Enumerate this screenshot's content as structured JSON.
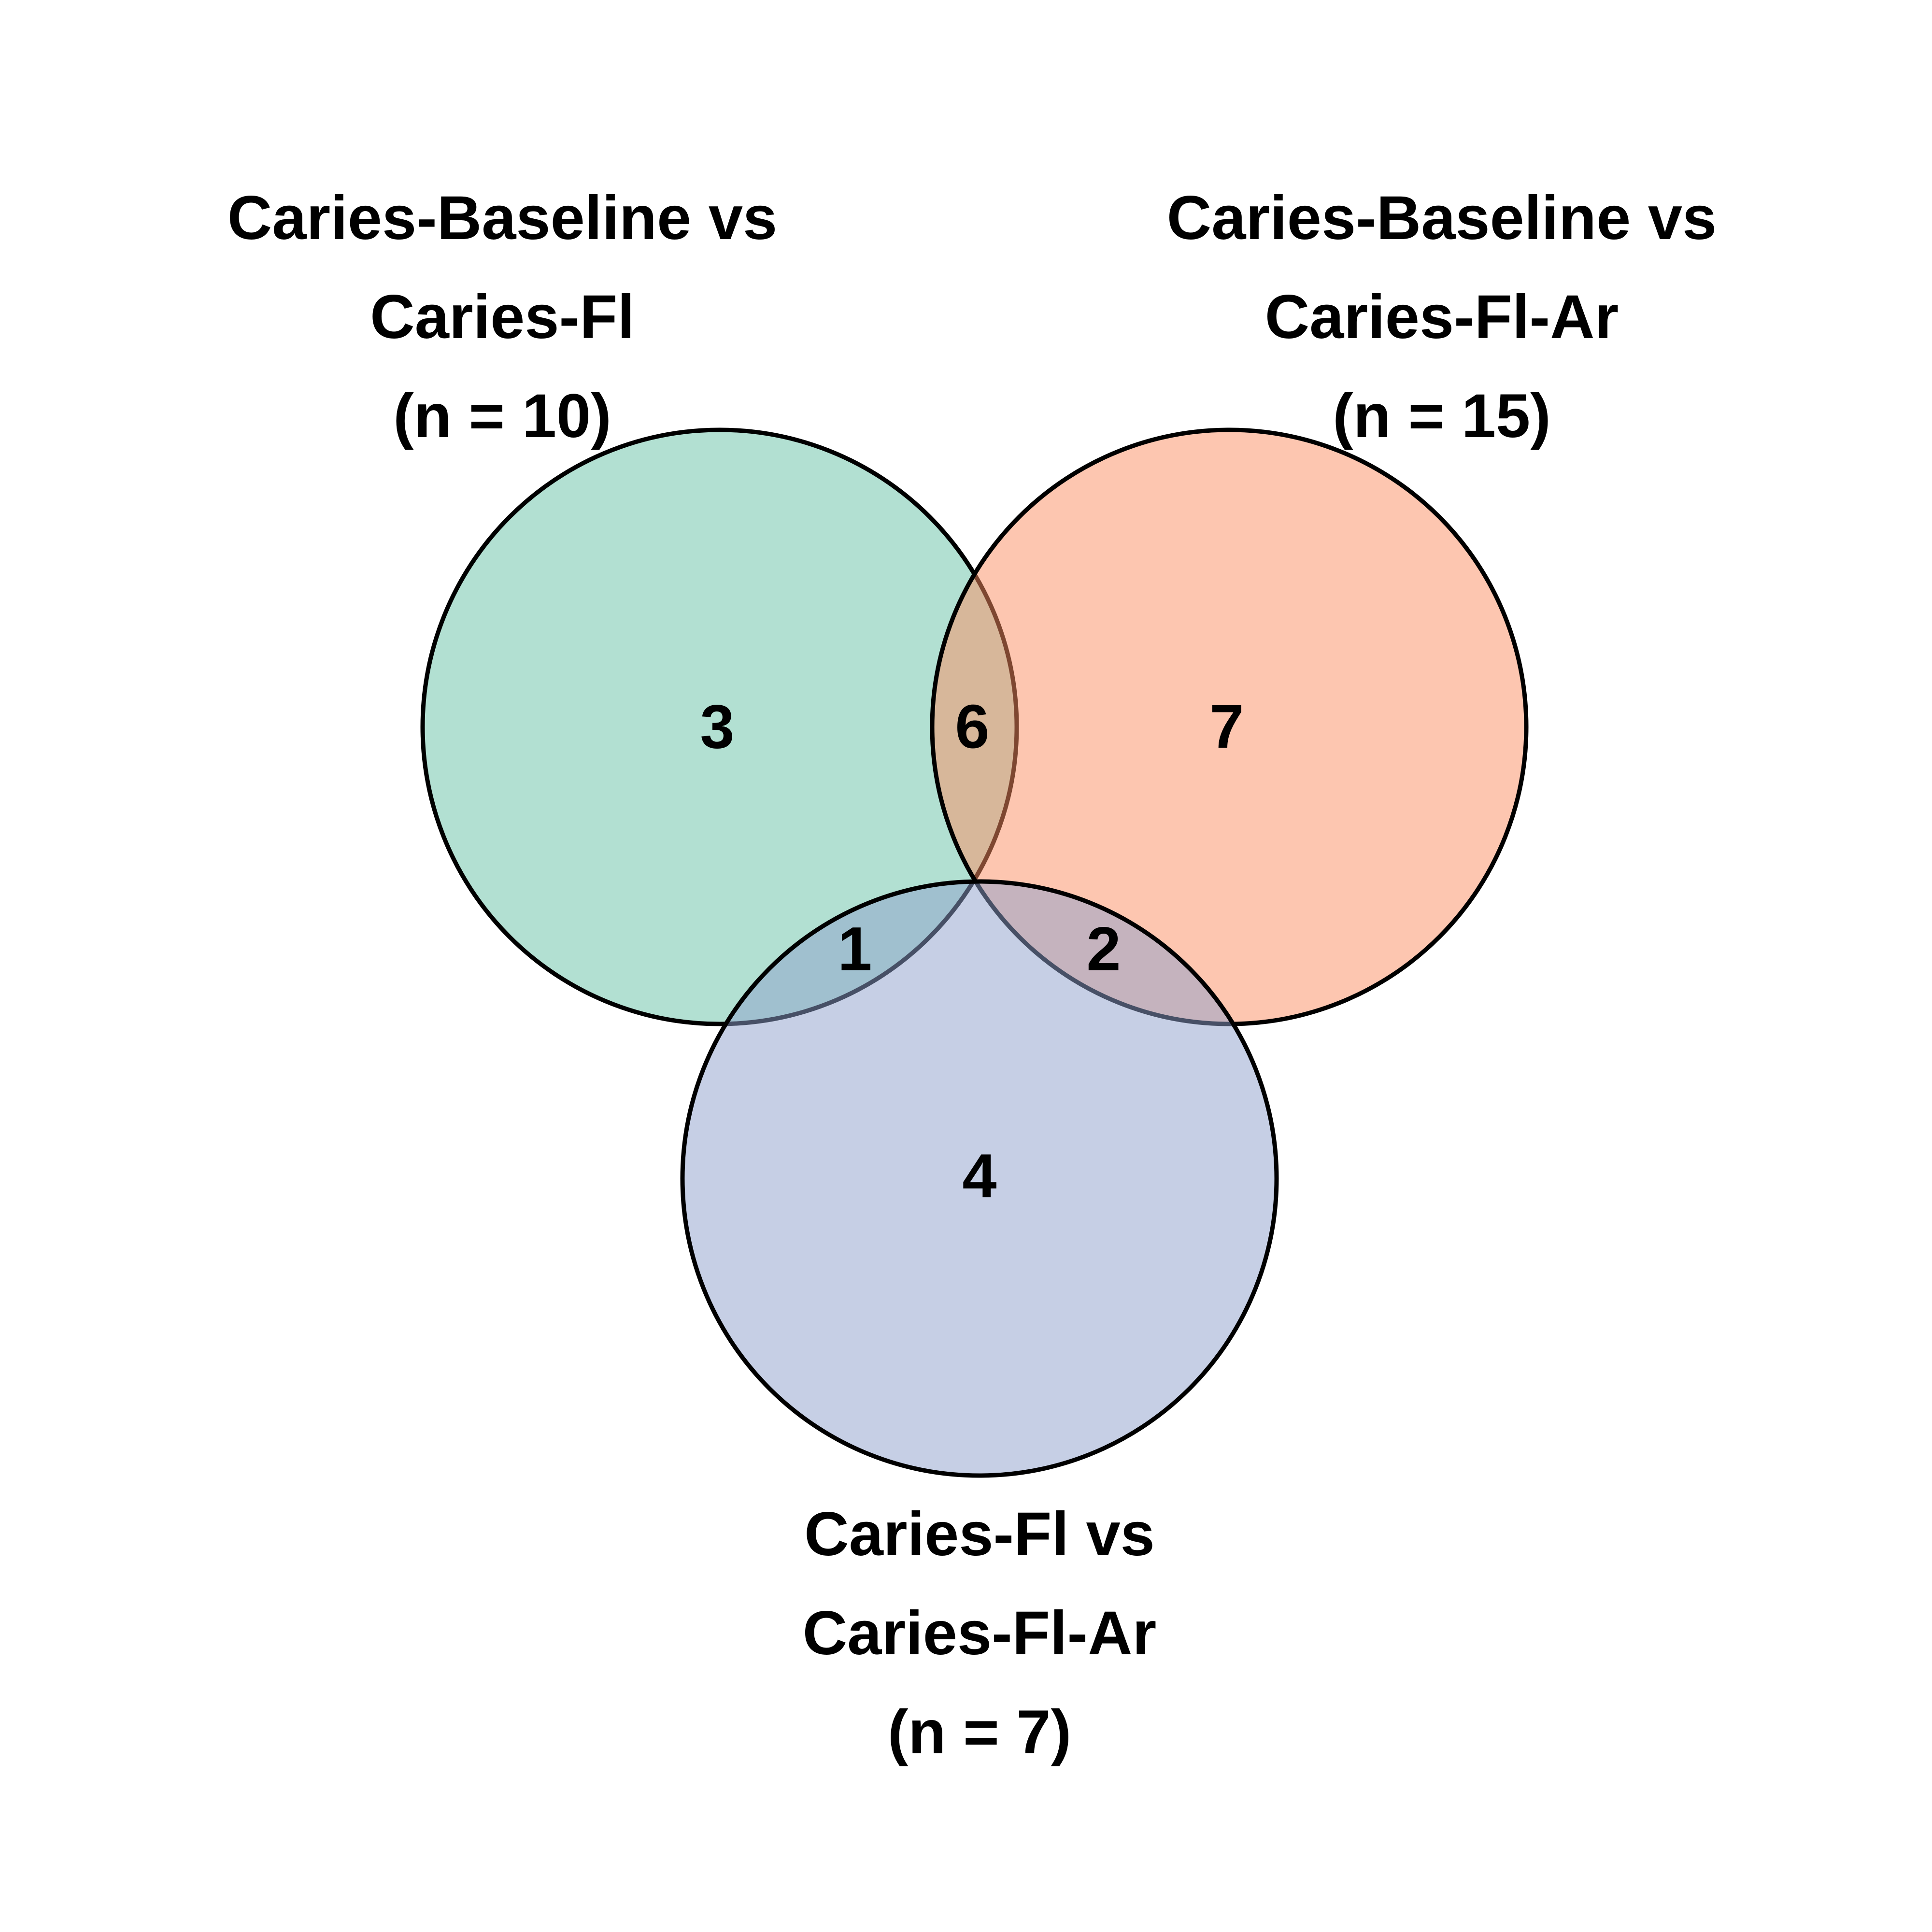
{
  "sets": [
    {
      "id": "a",
      "label_lines": [
        "Caries-Baseline vs",
        "Caries-Fl",
        "(n = 10)"
      ],
      "color": "#66c2a5"
    },
    {
      "id": "b",
      "label_lines": [
        "Caries-Baseline vs",
        "Caries-Fl-Ar",
        "(n = 15)"
      ],
      "color": "#fc8d62"
    },
    {
      "id": "c",
      "label_lines": [
        "Caries-Fl vs",
        "Caries-Fl-Ar",
        "(n = 7)"
      ],
      "color": "#8da0cb"
    }
  ],
  "regions": {
    "a_only": "3",
    "a_and_b": "6",
    "b_only": "7",
    "a_and_c": "1",
    "b_and_c": "2",
    "c_only": "4"
  }
}
